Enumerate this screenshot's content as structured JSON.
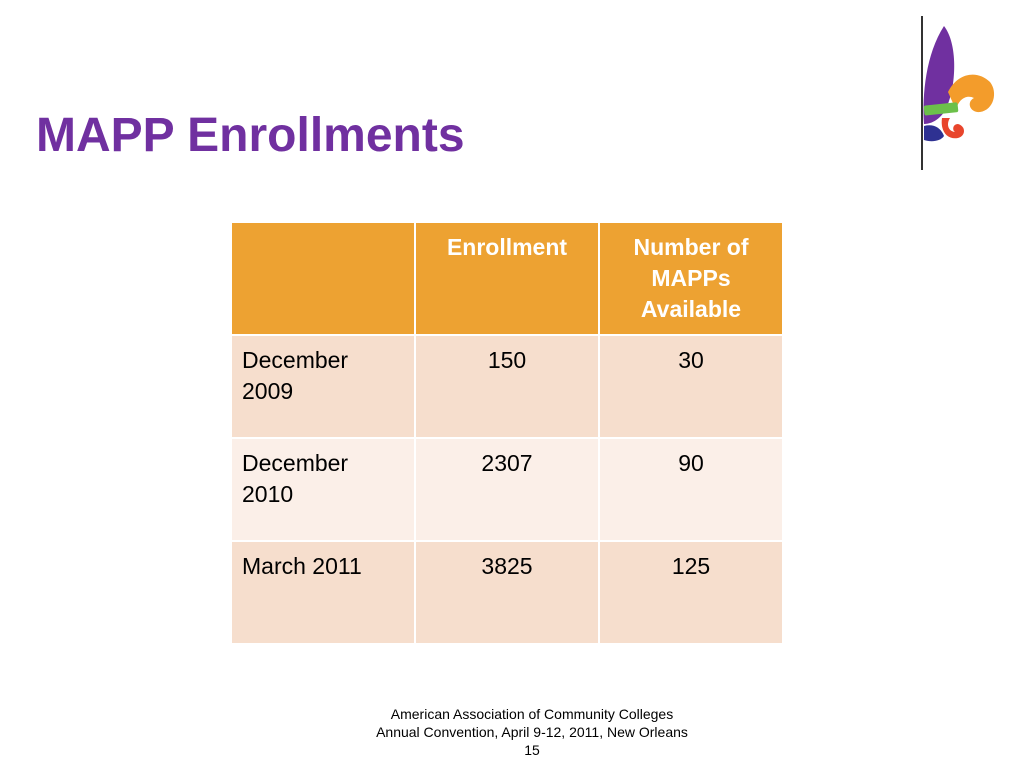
{
  "slide": {
    "title": "MAPP Enrollments"
  },
  "table": {
    "headers": [
      "",
      "Enrollment",
      "Number of MAPPs Available"
    ],
    "rows": [
      {
        "label": "December 2009",
        "enrollment": "150",
        "mapps": "30"
      },
      {
        "label": "December 2010",
        "enrollment": "2307",
        "mapps": "90"
      },
      {
        "label": "March 2011",
        "enrollment": "3825",
        "mapps": "125"
      }
    ]
  },
  "footer": {
    "line1": "American Association of Community Colleges",
    "line2": "Annual Convention, April 9-12, 2011, New Orleans",
    "page_number": "15"
  },
  "colors": {
    "title": "#7030a0",
    "header_fill": "#eda232",
    "row_fill_dark": "#f6decd",
    "row_fill_light": "#fbefe8"
  },
  "logo": {
    "icon": "fleur-de-lis-icon"
  }
}
